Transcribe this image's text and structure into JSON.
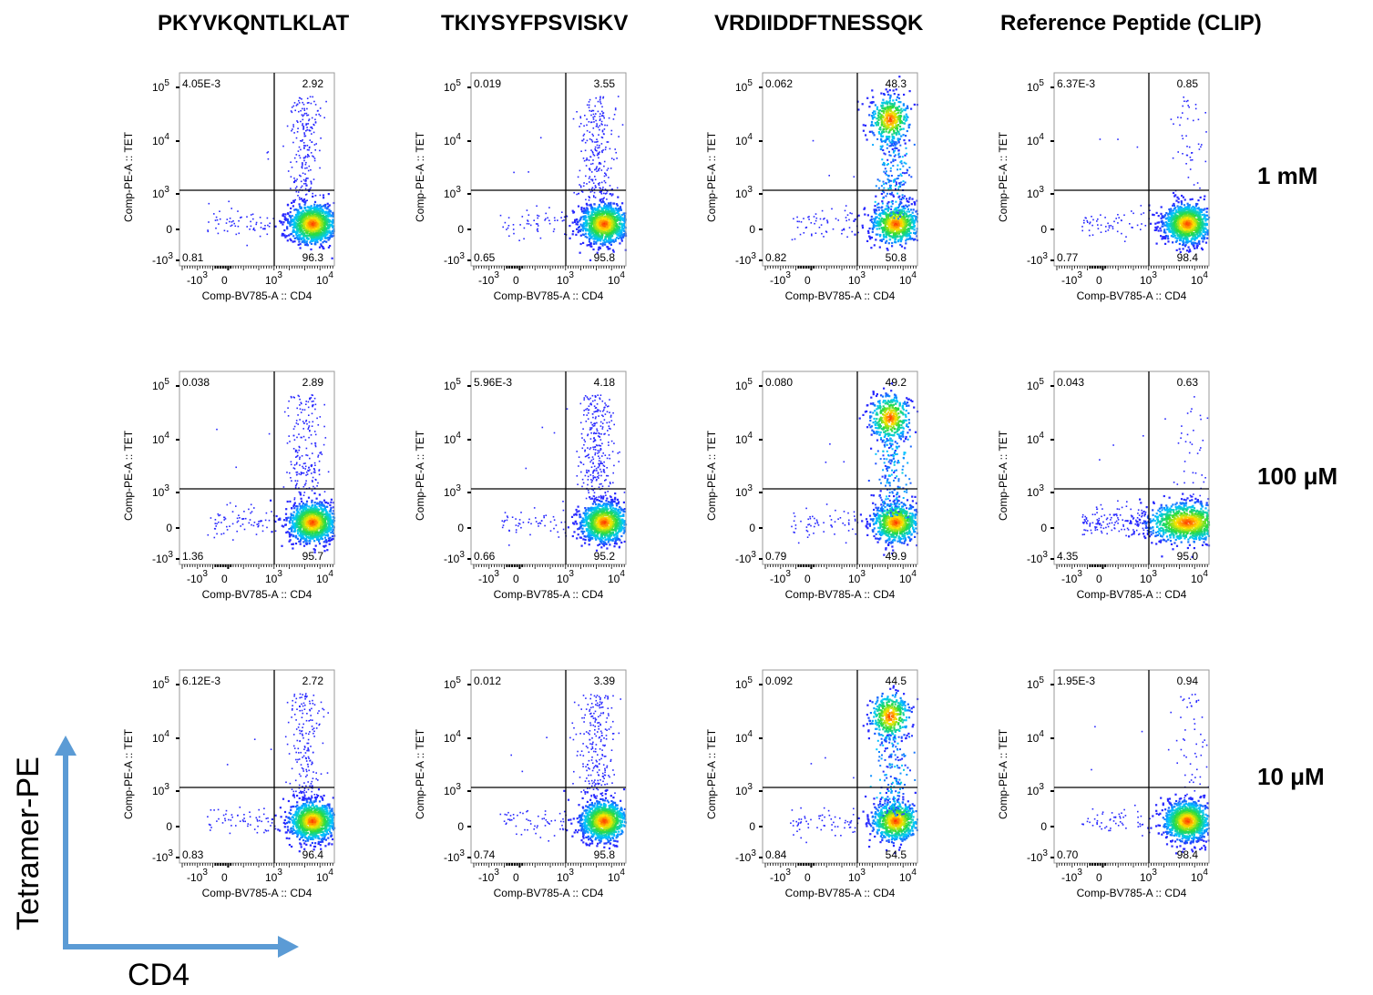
{
  "columns": [
    "PKYVKQNTLKLAT",
    "TKIYSYFPSVISKV",
    "VRDIIDDFTNESSQK",
    "Reference Peptide (CLIP)"
  ],
  "rows": [
    "1 mM",
    "100 μM",
    "10 μM"
  ],
  "axes": {
    "x_label": "Comp-BV785-A :: CD4",
    "y_label": "Comp-PE-A :: TET",
    "x_ticks": [
      "-10",
      "0",
      "10",
      "10"
    ],
    "x_tick_exps": [
      "3",
      "",
      "3",
      "4"
    ],
    "y_ticks": [
      "10",
      "10",
      "10",
      "0",
      "-10"
    ],
    "y_tick_exps": [
      "5",
      "4",
      "3",
      "",
      "3"
    ]
  },
  "summary_axes": {
    "y": "Tetramer-PE",
    "x": "CD4"
  },
  "colors": {
    "arrow": "#5b9bd5",
    "points_low": "#1f1fff",
    "points_high": "#ff2a00"
  },
  "chart_data": [
    {
      "type": "scatter",
      "panel": "PKYVKQNTLKLAT / 1 mM",
      "quadrants": {
        "ul": "4.05E-3",
        "ur": "2.92",
        "ll": "0.81",
        "lr": "96.3"
      },
      "populations": [
        {
          "x_center": 5000,
          "y_level": "0",
          "share": "96.3"
        },
        {
          "x_center": 5000,
          "y_level": "10^4",
          "share": "2.92"
        }
      ]
    },
    {
      "type": "scatter",
      "panel": "TKIYSYFPSVISKV / 1 mM",
      "quadrants": {
        "ul": "0.019",
        "ur": "3.55",
        "ll": "0.65",
        "lr": "95.8"
      },
      "populations": [
        {
          "x_center": 5000,
          "y_level": "0",
          "share": "95.8"
        },
        {
          "x_center": 5000,
          "y_level": "10^4",
          "share": "3.55"
        }
      ]
    },
    {
      "type": "scatter",
      "panel": "VRDIIDDFTNESSQK / 1 mM",
      "quadrants": {
        "ul": "0.062",
        "ur": "48.3",
        "ll": "0.82",
        "lr": "50.8"
      },
      "populations": [
        {
          "x_center": 5000,
          "y_level": "0",
          "share": "50.8"
        },
        {
          "x_center": 5000,
          "y_level": "10^4",
          "share": "48.3"
        }
      ]
    },
    {
      "type": "scatter",
      "panel": "Reference Peptide (CLIP) / 1 mM",
      "quadrants": {
        "ul": "6.37E-3",
        "ur": "0.85",
        "ll": "0.77",
        "lr": "98.4"
      },
      "populations": [
        {
          "x_center": 5000,
          "y_level": "0",
          "share": "98.4"
        }
      ]
    },
    {
      "type": "scatter",
      "panel": "PKYVKQNTLKLAT / 100 μM",
      "quadrants": {
        "ul": "0.038",
        "ur": "2.89",
        "ll": "1.36",
        "lr": "95.7"
      },
      "populations": [
        {
          "x_center": 5000,
          "y_level": "0",
          "share": "95.7"
        },
        {
          "x_center": 5000,
          "y_level": "10^4",
          "share": "2.89"
        }
      ]
    },
    {
      "type": "scatter",
      "panel": "TKIYSYFPSVISKV / 100 μM",
      "quadrants": {
        "ul": "5.96E-3",
        "ur": "4.18",
        "ll": "0.66",
        "lr": "95.2"
      },
      "populations": [
        {
          "x_center": 5000,
          "y_level": "0",
          "share": "95.2"
        },
        {
          "x_center": 5000,
          "y_level": "10^4",
          "share": "4.18"
        }
      ]
    },
    {
      "type": "scatter",
      "panel": "VRDIIDDFTNESSQK / 100 μM",
      "quadrants": {
        "ul": "0.080",
        "ur": "49.2",
        "ll": "0.79",
        "lr": "49.9"
      },
      "populations": [
        {
          "x_center": 5000,
          "y_level": "0",
          "share": "49.9"
        },
        {
          "x_center": 5000,
          "y_level": "10^4",
          "share": "49.2"
        }
      ]
    },
    {
      "type": "scatter",
      "panel": "Reference Peptide (CLIP) / 100 μM",
      "quadrants": {
        "ul": "0.043",
        "ur": "0.63",
        "ll": "4.35",
        "lr": "95.0"
      },
      "populations": [
        {
          "x_center": 5000,
          "y_level": "0",
          "share": "95.0"
        }
      ]
    },
    {
      "type": "scatter",
      "panel": "PKYVKQNTLKLAT / 10 μM",
      "quadrants": {
        "ul": "6.12E-3",
        "ur": "2.72",
        "ll": "0.83",
        "lr": "96.4"
      },
      "populations": [
        {
          "x_center": 5000,
          "y_level": "0",
          "share": "96.4"
        },
        {
          "x_center": 5000,
          "y_level": "10^4",
          "share": "2.72"
        }
      ]
    },
    {
      "type": "scatter",
      "panel": "TKIYSYFPSVISKV / 10 μM",
      "quadrants": {
        "ul": "0.012",
        "ur": "3.39",
        "ll": "0.74",
        "lr": "95.8"
      },
      "populations": [
        {
          "x_center": 5000,
          "y_level": "0",
          "share": "95.8"
        },
        {
          "x_center": 5000,
          "y_level": "10^4",
          "share": "3.39"
        }
      ]
    },
    {
      "type": "scatter",
      "panel": "VRDIIDDFTNESSQK / 10 μM",
      "quadrants": {
        "ul": "0.092",
        "ur": "44.5",
        "ll": "0.84",
        "lr": "54.5"
      },
      "populations": [
        {
          "x_center": 5000,
          "y_level": "0",
          "share": "54.5"
        },
        {
          "x_center": 5000,
          "y_level": "10^4",
          "share": "44.5"
        }
      ]
    },
    {
      "type": "scatter",
      "panel": "Reference Peptide (CLIP) / 10 μM",
      "quadrants": {
        "ul": "1.95E-3",
        "ur": "0.94",
        "ll": "0.70",
        "lr": "98.4"
      },
      "populations": [
        {
          "x_center": 5000,
          "y_level": "0",
          "share": "98.4"
        }
      ]
    }
  ]
}
